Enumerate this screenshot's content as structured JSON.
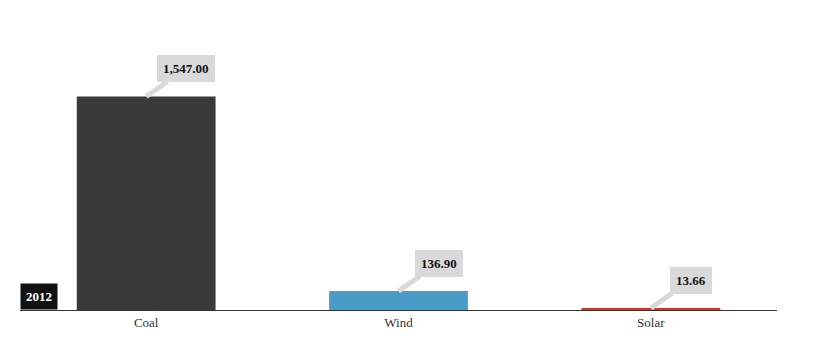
{
  "chart_data": {
    "type": "bar",
    "categories": [
      "Coal",
      "Wind",
      "Solar"
    ],
    "values": [
      1547,
      136.9,
      13.66
    ],
    "value_labels": [
      "1,547.00",
      "136.90",
      "13.66"
    ],
    "colors": [
      "#3a3a3a",
      "#4a9cc8",
      "#e0301e"
    ],
    "data_labels": true,
    "tick_labels": "x",
    "grid": false,
    "annotations": [
      {
        "text": "2012"
      }
    ]
  }
}
